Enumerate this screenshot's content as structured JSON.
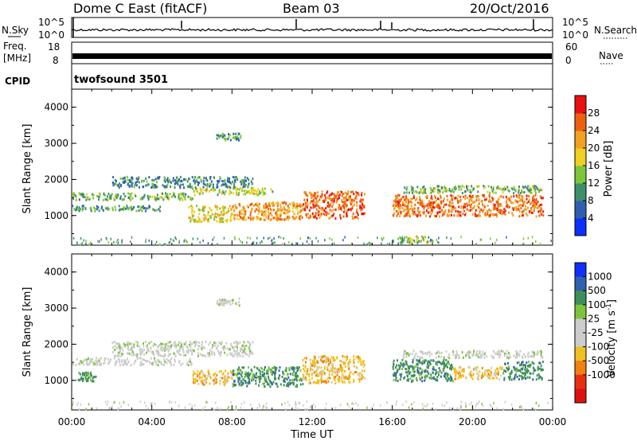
{
  "header": {
    "station": "Dome C East (fitACF)",
    "beam": "Beam 03",
    "date": "20/Oct/2016"
  },
  "side_labels": {
    "nsky": "N.Sky",
    "freq_line1": "Freq.",
    "freq_line2": "[MHz]",
    "cpid": "CPID",
    "nsearch": "N.Search",
    "nave": "Nave"
  },
  "cpid_value": "twofsound 3501",
  "panels": {
    "noise": {
      "left_ticks": [
        "10^5",
        "10^0"
      ],
      "right_ticks": [
        "10^5",
        "10^0"
      ]
    },
    "freq": {
      "left_ticks": [
        "18",
        "8"
      ],
      "right_ticks": [
        "60",
        "0"
      ]
    }
  },
  "colors": {
    "power_scale": [
      "#0a2fff",
      "#2f5fb0",
      "#3f8f6a",
      "#7cc63a",
      "#f0d020",
      "#f2a020",
      "#ee6010",
      "#e81010"
    ],
    "velocity_scale": [
      "#1030ff",
      "#3060b0",
      "#3f8f5a",
      "#7ec43a",
      "#cccccc",
      "#cccccc",
      "#f0c020",
      "#f08010",
      "#e83010",
      "#e01010"
    ]
  },
  "chart_data": [
    {
      "type": "heatmap",
      "title": "",
      "xlabel": "Time UT",
      "ylabel": "Slant Range [km]",
      "x_tick_labels": [
        "00:00",
        "04:00",
        "08:00",
        "12:00",
        "16:00",
        "20:00",
        "00:00"
      ],
      "y_ticks": [
        1000,
        2000,
        3000,
        4000
      ],
      "xlim": [
        0,
        24
      ],
      "ylim": [
        180,
        4500
      ],
      "colorbar": {
        "label": "Power [dB]",
        "ticks": [
          4,
          8,
          12,
          16,
          20,
          24,
          28
        ],
        "range": [
          0,
          32
        ]
      },
      "scatter_regions": [
        {
          "t": [
            0.0,
            6.0
          ],
          "r": [
            1450,
            1650
          ],
          "v": 12
        },
        {
          "t": [
            0.0,
            4.5
          ],
          "r": [
            1150,
            1300
          ],
          "v": 10
        },
        {
          "t": [
            2.0,
            9.0
          ],
          "r": [
            1800,
            2100
          ],
          "v": 8
        },
        {
          "t": [
            6.0,
            10.0
          ],
          "r": [
            1600,
            1800
          ],
          "v": 16
        },
        {
          "t": [
            5.8,
            8.0
          ],
          "r": [
            850,
            1300
          ],
          "v": 18
        },
        {
          "t": [
            8.0,
            11.5
          ],
          "r": [
            900,
            1400
          ],
          "v": 24
        },
        {
          "t": [
            11.5,
            14.6
          ],
          "r": [
            950,
            1700
          ],
          "v": 27
        },
        {
          "t": [
            7.2,
            8.4
          ],
          "r": [
            3100,
            3300
          ],
          "v": 10
        },
        {
          "t": [
            16.0,
            23.5
          ],
          "r": [
            1000,
            1600
          ],
          "v": 26
        },
        {
          "t": [
            16.5,
            23.5
          ],
          "r": [
            1650,
            1850
          ],
          "v": 12
        },
        {
          "t": [
            16.2,
            18.0
          ],
          "r": [
            250,
            450
          ],
          "v": 14
        }
      ]
    },
    {
      "type": "heatmap",
      "title": "",
      "xlabel": "Time UT",
      "ylabel": "Slant Range [km]",
      "x_tick_labels": [
        "00:00",
        "04:00",
        "08:00",
        "12:00",
        "16:00",
        "20:00",
        "00:00"
      ],
      "y_ticks": [
        1000,
        2000,
        3000,
        4000
      ],
      "xlim": [
        0,
        24
      ],
      "ylim": [
        180,
        4500
      ],
      "colorbar": {
        "label": "Velocity [m s^-1]",
        "ticks": [
          1000,
          500,
          100,
          25,
          -25,
          -100,
          -500,
          -1000
        ]
      },
      "scatter_regions": [
        {
          "t": [
            0.0,
            6.0
          ],
          "r": [
            1450,
            1650
          ],
          "v": 0
        },
        {
          "t": [
            0.3,
            1.2
          ],
          "r": [
            1000,
            1250
          ],
          "v": 150
        },
        {
          "t": [
            2.0,
            9.0
          ],
          "r": [
            1700,
            2100
          ],
          "v": 0
        },
        {
          "t": [
            6.0,
            8.0
          ],
          "r": [
            900,
            1300
          ],
          "v": -200
        },
        {
          "t": [
            8.0,
            11.5
          ],
          "r": [
            850,
            1400
          ],
          "v": 120
        },
        {
          "t": [
            11.5,
            14.6
          ],
          "r": [
            950,
            1700
          ],
          "v": -300
        },
        {
          "t": [
            7.2,
            8.4
          ],
          "r": [
            3100,
            3300
          ],
          "v": 0
        },
        {
          "t": [
            16.0,
            19.0
          ],
          "r": [
            1000,
            1600
          ],
          "v": 120
        },
        {
          "t": [
            19.0,
            21.5
          ],
          "r": [
            1050,
            1400
          ],
          "v": -200
        },
        {
          "t": [
            21.5,
            23.5
          ],
          "r": [
            1050,
            1550
          ],
          "v": 120
        },
        {
          "t": [
            16.5,
            23.5
          ],
          "r": [
            1650,
            1850
          ],
          "v": 0
        }
      ]
    }
  ]
}
